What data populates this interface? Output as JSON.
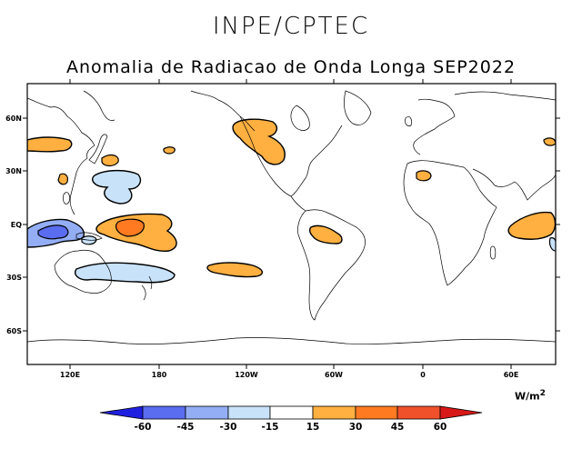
{
  "header": {
    "institution": "INPE/CPTEC",
    "title": "Anomalia de Radiacao de Onda Longa SEP2022"
  },
  "map": {
    "lat_ticks": [
      "60N",
      "30N",
      "EQ",
      "30S",
      "60S"
    ],
    "lon_ticks": [
      "120E",
      "180",
      "120W",
      "60W",
      "0",
      "60E"
    ]
  },
  "colorbar": {
    "units_base": "W/m",
    "units_exp": "2",
    "labels": [
      "-60",
      "-45",
      "-30",
      "-15",
      "15",
      "30",
      "45",
      "60"
    ],
    "colors": [
      "#2020e0",
      "#5a6cf0",
      "#94aef5",
      "#c8e2fa",
      "#ffffff",
      "#ffb040",
      "#ff7a20",
      "#f0502a",
      "#d81818"
    ]
  }
}
